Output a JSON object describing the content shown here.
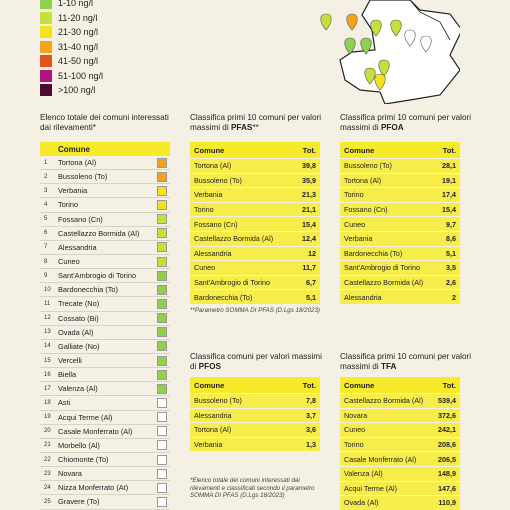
{
  "legend": [
    {
      "label": "1-10 ng/l",
      "color": "#8fd14f"
    },
    {
      "label": "11-20 ng/l",
      "color": "#c6e03a"
    },
    {
      "label": "21-30 ng/l",
      "color": "#f5e11c"
    },
    {
      "label": "31-40 ng/l",
      "color": "#f5a21c"
    },
    {
      "label": "41-50 ng/l",
      "color": "#e3531c"
    },
    {
      "label": "51-100 ng/l",
      "color": "#b0157a"
    },
    {
      "label": ">100 ng/l",
      "color": "#4a0b2e"
    }
  ],
  "main": {
    "title_plain": "Elenco totale dei comuni interessati dai rilevamenti*",
    "header": "Comune",
    "rows": [
      {
        "n": "1",
        "name": "Tortona (Al)",
        "color": "#f5a21c"
      },
      {
        "n": "2",
        "name": "Bussoleno (To)",
        "color": "#f5a21c"
      },
      {
        "n": "3",
        "name": "Verbania",
        "color": "#f5e11c"
      },
      {
        "n": "4",
        "name": "Torino",
        "color": "#f5e11c"
      },
      {
        "n": "5",
        "name": "Fossano (Cn)",
        "color": "#c6e03a"
      },
      {
        "n": "6",
        "name": "Castellazzo Bormida (Al)",
        "color": "#c6e03a"
      },
      {
        "n": "7",
        "name": "Alessandria",
        "color": "#c6e03a"
      },
      {
        "n": "8",
        "name": "Cuneo",
        "color": "#c6e03a"
      },
      {
        "n": "9",
        "name": "Sant'Ambrogio di Torino",
        "color": "#8fd14f"
      },
      {
        "n": "10",
        "name": "Bardonecchia (To)",
        "color": "#8fd14f"
      },
      {
        "n": "11",
        "name": "Trecate (No)",
        "color": "#8fd14f"
      },
      {
        "n": "12",
        "name": "Cossato (Bi)",
        "color": "#8fd14f"
      },
      {
        "n": "13",
        "name": "Ovada (Al)",
        "color": "#8fd14f"
      },
      {
        "n": "14",
        "name": "Galliate (No)",
        "color": "#8fd14f"
      },
      {
        "n": "15",
        "name": "Vercelli",
        "color": "#8fd14f"
      },
      {
        "n": "16",
        "name": "Biella",
        "color": "#8fd14f"
      },
      {
        "n": "17",
        "name": "Valenza (Al)",
        "color": "#8fd14f"
      },
      {
        "n": "18",
        "name": "Asti",
        "color": "#ffffff"
      },
      {
        "n": "19",
        "name": "Acqui Terme (Al)",
        "color": "#ffffff"
      },
      {
        "n": "20",
        "name": "Casale Monferrato (Al)",
        "color": "#ffffff"
      },
      {
        "n": "21",
        "name": "Morbello (Al)",
        "color": "#ffffff"
      },
      {
        "n": "22",
        "name": "Chiomonte (To)",
        "color": "#ffffff"
      },
      {
        "n": "23",
        "name": "Novara",
        "color": "#ffffff"
      },
      {
        "n": "24",
        "name": "Nizza Monferrato (At)",
        "color": "#ffffff"
      },
      {
        "n": "25",
        "name": "Gravere (To)",
        "color": "#ffffff"
      }
    ]
  },
  "pfas": {
    "title_plain": "Classifica primi 10 comuni per valori massimi di ",
    "title_bold": "PFAS",
    "title_suffix": "**",
    "col_name": "Comune",
    "col_value": "Tot.",
    "rows": [
      {
        "name": "Tortona (Al)",
        "value": "39,8"
      },
      {
        "name": "Bussoleno (To)",
        "value": "35,9"
      },
      {
        "name": "Verbania",
        "value": "21,3"
      },
      {
        "name": "Torino",
        "value": "21,1"
      },
      {
        "name": "Fossano (Cn)",
        "value": "15,4"
      },
      {
        "name": "Castellazzo Bormida (Al)",
        "value": "12,4"
      },
      {
        "name": "Alessandria",
        "value": "12"
      },
      {
        "name": "Cuneo",
        "value": "11,7"
      },
      {
        "name": "Sant'Ambrogio di Torino",
        "value": "6,7"
      },
      {
        "name": "Bardonecchia (To)",
        "value": "5,1"
      }
    ],
    "note": "**Parametro SOMMA DI PFAS (D.Lgs 18/2023)"
  },
  "pfoa": {
    "title_plain": "Classifica primi 10 comuni per valori massimi di ",
    "title_bold": "PFOA",
    "col_name": "Comune",
    "col_value": "Tot.",
    "rows": [
      {
        "name": "Bussoleno (To)",
        "value": "28,1"
      },
      {
        "name": "Tortona (Al)",
        "value": "19,1"
      },
      {
        "name": "Torino",
        "value": "17,4"
      },
      {
        "name": "Fossano (Cn)",
        "value": "15,4"
      },
      {
        "name": "Cuneo",
        "value": "9,7"
      },
      {
        "name": "Verbania",
        "value": "8,6"
      },
      {
        "name": "Bardonecchia (To)",
        "value": "5,1"
      },
      {
        "name": "Sant'Ambrogio di Torino",
        "value": "3,5"
      },
      {
        "name": "Castellazzo Bormida (Al)",
        "value": "2,6"
      },
      {
        "name": "Alessandria",
        "value": "2"
      }
    ]
  },
  "pfos": {
    "title_plain": "Classifica comuni per valori massimi di ",
    "title_bold": "PFOS",
    "col_name": "Comune",
    "col_value": "Tot.",
    "rows": [
      {
        "name": "Bussoleno (To)",
        "value": "7,8"
      },
      {
        "name": "Alessandria",
        "value": "3,7"
      },
      {
        "name": "Tortona (Al)",
        "value": "3,6"
      },
      {
        "name": "Verbania",
        "value": "1,3"
      }
    ],
    "note": "*Elenco totale dei comuni interessati dai rilevamenti e classificati secondo il parametro SOMMA DI PFAS (D.Lgs 18/2023)"
  },
  "tfa": {
    "title_plain": "Classifica primi 10 comuni per valori massimi di ",
    "title_bold": "TFA",
    "col_name": "Comune",
    "col_value": "Tot.",
    "rows": [
      {
        "name": "Castellazzo Bormida (Al)",
        "value": "539,4"
      },
      {
        "name": "Novara",
        "value": "372,6"
      },
      {
        "name": "Cuneo",
        "value": "242,1"
      },
      {
        "name": "Torino",
        "value": "208,6"
      },
      {
        "name": "Casale Monferrato (Al)",
        "value": "206,5"
      },
      {
        "name": "Valenza (Al)",
        "value": "148,9"
      },
      {
        "name": "Acqui Terme (Al)",
        "value": "147,6"
      },
      {
        "name": "Ovada (Al)",
        "value": "110,9"
      }
    ]
  },
  "map_markers": [
    {
      "color": "#c6e03a"
    },
    {
      "color": "#f5a21c"
    },
    {
      "color": "#c6e03a"
    },
    {
      "color": "#c6e03a"
    },
    {
      "color": "#8fd14f"
    },
    {
      "color": "#8fd14f"
    },
    {
      "color": "#ffffff"
    },
    {
      "color": "#ffffff"
    },
    {
      "color": "#c6e03a"
    },
    {
      "color": "#f5e11c"
    },
    {
      "color": "#c6e03a"
    }
  ]
}
